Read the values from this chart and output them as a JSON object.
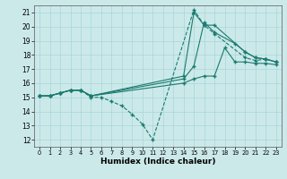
{
  "xlabel": "Humidex (Indice chaleur)",
  "xlim": [
    -0.5,
    23.5
  ],
  "ylim": [
    11.5,
    21.5
  ],
  "xticks": [
    0,
    1,
    2,
    3,
    4,
    5,
    6,
    7,
    8,
    9,
    10,
    11,
    12,
    13,
    14,
    15,
    16,
    17,
    18,
    19,
    20,
    21,
    22,
    23
  ],
  "yticks": [
    12,
    13,
    14,
    15,
    16,
    17,
    18,
    19,
    20,
    21
  ],
  "bg_color": "#cce9ea",
  "line_color": "#1a7a6e",
  "lines": [
    {
      "style": "--",
      "x": [
        0,
        1,
        2,
        3,
        4,
        5,
        6,
        7,
        8,
        9,
        10,
        11,
        15,
        16,
        17,
        20,
        21,
        22,
        23
      ],
      "y": [
        15.1,
        15.1,
        15.3,
        15.5,
        15.5,
        15.0,
        15.0,
        14.7,
        14.4,
        13.8,
        13.1,
        12.0,
        21.2,
        20.1,
        19.5,
        17.8,
        17.6,
        17.7,
        17.5
      ]
    },
    {
      "style": "-",
      "x": [
        0,
        1,
        2,
        3,
        4,
        5,
        14,
        15,
        16,
        17,
        20,
        21,
        22,
        23
      ],
      "y": [
        15.1,
        15.1,
        15.3,
        15.5,
        15.5,
        15.1,
        16.5,
        21.0,
        20.1,
        20.1,
        18.2,
        17.8,
        17.7,
        17.5
      ]
    },
    {
      "style": "-",
      "x": [
        0,
        1,
        2,
        3,
        4,
        5,
        14,
        15,
        16,
        17,
        19,
        20,
        21,
        22,
        23
      ],
      "y": [
        15.1,
        15.1,
        15.3,
        15.5,
        15.5,
        15.1,
        16.3,
        17.2,
        20.3,
        19.6,
        18.8,
        18.2,
        17.8,
        17.7,
        17.5
      ]
    },
    {
      "style": "-",
      "x": [
        0,
        1,
        2,
        3,
        4,
        5,
        14,
        15,
        16,
        17,
        18,
        19,
        20,
        21,
        22,
        23
      ],
      "y": [
        15.1,
        15.1,
        15.3,
        15.5,
        15.5,
        15.1,
        16.0,
        16.3,
        16.5,
        16.5,
        18.5,
        17.5,
        17.5,
        17.4,
        17.4,
        17.3
      ]
    }
  ]
}
